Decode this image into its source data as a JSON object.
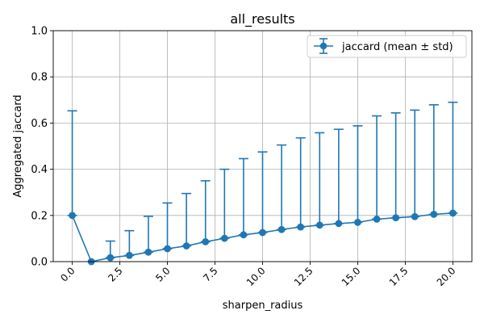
{
  "chart_data": {
    "type": "line",
    "title": "all_results",
    "xlabel": "sharpen_radius",
    "ylabel": "Aggregated jaccard",
    "xlim": [
      -1.0,
      21.0
    ],
    "ylim": [
      0.0,
      1.0
    ],
    "xticks": [
      0.0,
      2.5,
      5.0,
      7.5,
      10.0,
      12.5,
      15.0,
      17.5,
      20.0
    ],
    "xtick_labels": [
      "0.0",
      "2.5",
      "5.0",
      "7.5",
      "10.0",
      "12.5",
      "15.0",
      "17.5",
      "20.0"
    ],
    "yticks": [
      0.0,
      0.2,
      0.4,
      0.6,
      0.8,
      1.0
    ],
    "ytick_labels": [
      "0.0",
      "0.2",
      "0.4",
      "0.6",
      "0.8",
      "1.0"
    ],
    "grid": true,
    "legend_position": "top-right",
    "series": [
      {
        "name": "jaccard (mean ± std)",
        "color": "#1f77b4",
        "x": [
          0,
          1,
          2,
          3,
          4,
          5,
          6,
          7,
          8,
          9,
          10,
          11,
          12,
          13,
          14,
          15,
          16,
          17,
          18,
          19,
          20
        ],
        "y": [
          0.2,
          0.0,
          0.017,
          0.027,
          0.041,
          0.056,
          0.068,
          0.086,
          0.101,
          0.116,
          0.126,
          0.139,
          0.15,
          0.158,
          0.165,
          0.17,
          0.184,
          0.19,
          0.195,
          0.205,
          0.21
        ],
        "err_upper": [
          0.453,
          0.0,
          0.072,
          0.107,
          0.155,
          0.198,
          0.227,
          0.264,
          0.299,
          0.33,
          0.349,
          0.366,
          0.386,
          0.4,
          0.408,
          0.418,
          0.447,
          0.454,
          0.461,
          0.474,
          0.48
        ],
        "err_lower": [
          0.0,
          0.0,
          0.0,
          0.0,
          0.0,
          0.0,
          0.0,
          0.0,
          0.0,
          0.0,
          0.0,
          0.0,
          0.0,
          0.0,
          0.0,
          0.0,
          0.0,
          0.0,
          0.0,
          0.0,
          0.0
        ]
      }
    ]
  }
}
